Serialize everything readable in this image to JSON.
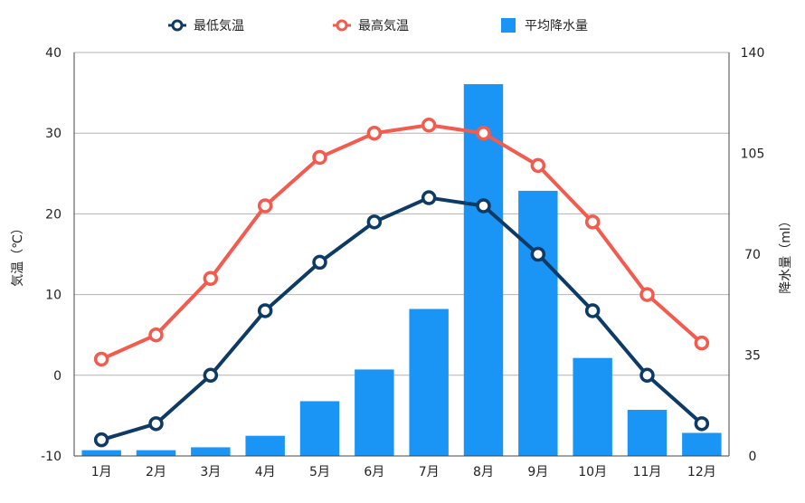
{
  "chart_data": {
    "type": "bar+line",
    "categories": [
      "1月",
      "2月",
      "3月",
      "4月",
      "5月",
      "6月",
      "7月",
      "8月",
      "9月",
      "10月",
      "11月",
      "12月"
    ],
    "series": [
      {
        "name": "最低気温",
        "type": "line",
        "axis": "left",
        "color": "#0d3b66",
        "values": [
          -8,
          -6,
          0,
          8,
          14,
          19,
          22,
          21,
          15,
          8,
          0,
          -6
        ]
      },
      {
        "name": "最高気温",
        "type": "line",
        "axis": "left",
        "color": "#f45b4f",
        "values": [
          2,
          5,
          12,
          21,
          27,
          30,
          31,
          30,
          26,
          19,
          10,
          4
        ]
      },
      {
        "name": "平均降水量",
        "type": "bar",
        "axis": "right",
        "color": "#1a94f5",
        "values": [
          2,
          2,
          3,
          7,
          19,
          30,
          51,
          129,
          92,
          34,
          16,
          8
        ]
      }
    ],
    "y_left": {
      "label": "気温（℃）",
      "min": -10,
      "max": 40,
      "ticks": [
        -10,
        0,
        10,
        20,
        30,
        40
      ]
    },
    "y_right": {
      "label": "降水量（ml）",
      "min": 0,
      "max": 140,
      "ticks": [
        0,
        35,
        70,
        105,
        140
      ]
    },
    "legend_position": "top-center",
    "grid": true
  }
}
